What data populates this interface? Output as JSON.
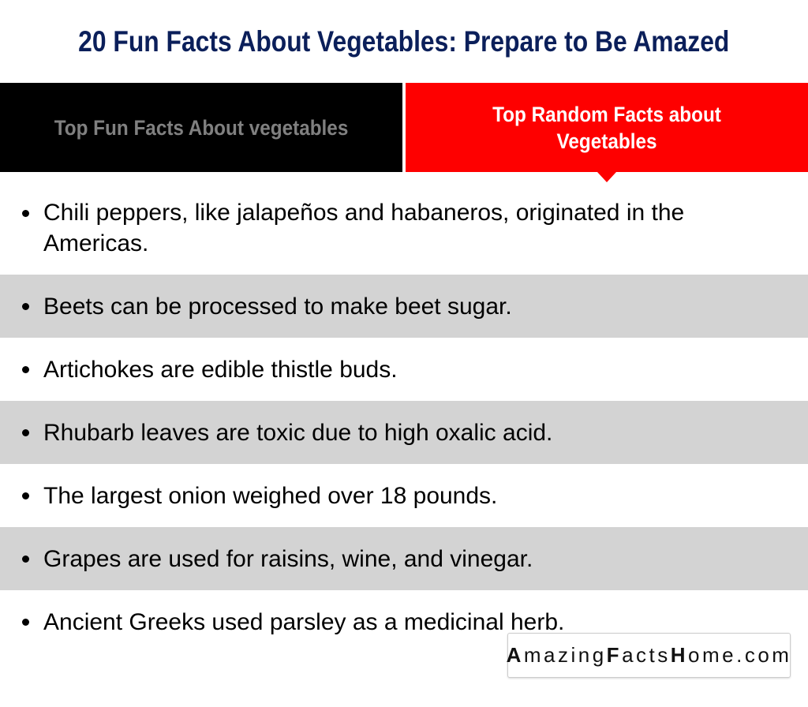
{
  "header": {
    "title": "20 Fun Facts About Vegetables: Prepare to Be Amazed"
  },
  "tabs": [
    {
      "label": "Top Fun Facts About vegetables",
      "active": false
    },
    {
      "label": "Top Random Facts about Vegetables",
      "active": true
    }
  ],
  "facts": [
    "Chili peppers, like jalapeños and habaneros, originated in the Americas.",
    "Beets can be processed to make beet sugar.",
    "Artichokes are edible thistle buds.",
    "Rhubarb leaves are toxic due to high oxalic acid.",
    "The largest onion weighed over 18 pounds.",
    "Grapes are used for raisins, wine, and vinegar.",
    "Ancient Greeks used parsley as a medicinal herb."
  ],
  "watermark": {
    "text": "AmazingFactsHome.com",
    "parts": [
      "A",
      "mazing",
      "F",
      "acts",
      "H",
      "ome.com"
    ]
  },
  "colors": {
    "title": "#0b1f5a",
    "active_tab": "#fe0000",
    "inactive_tab": "#000000",
    "stripe": "#d3d3d3"
  }
}
